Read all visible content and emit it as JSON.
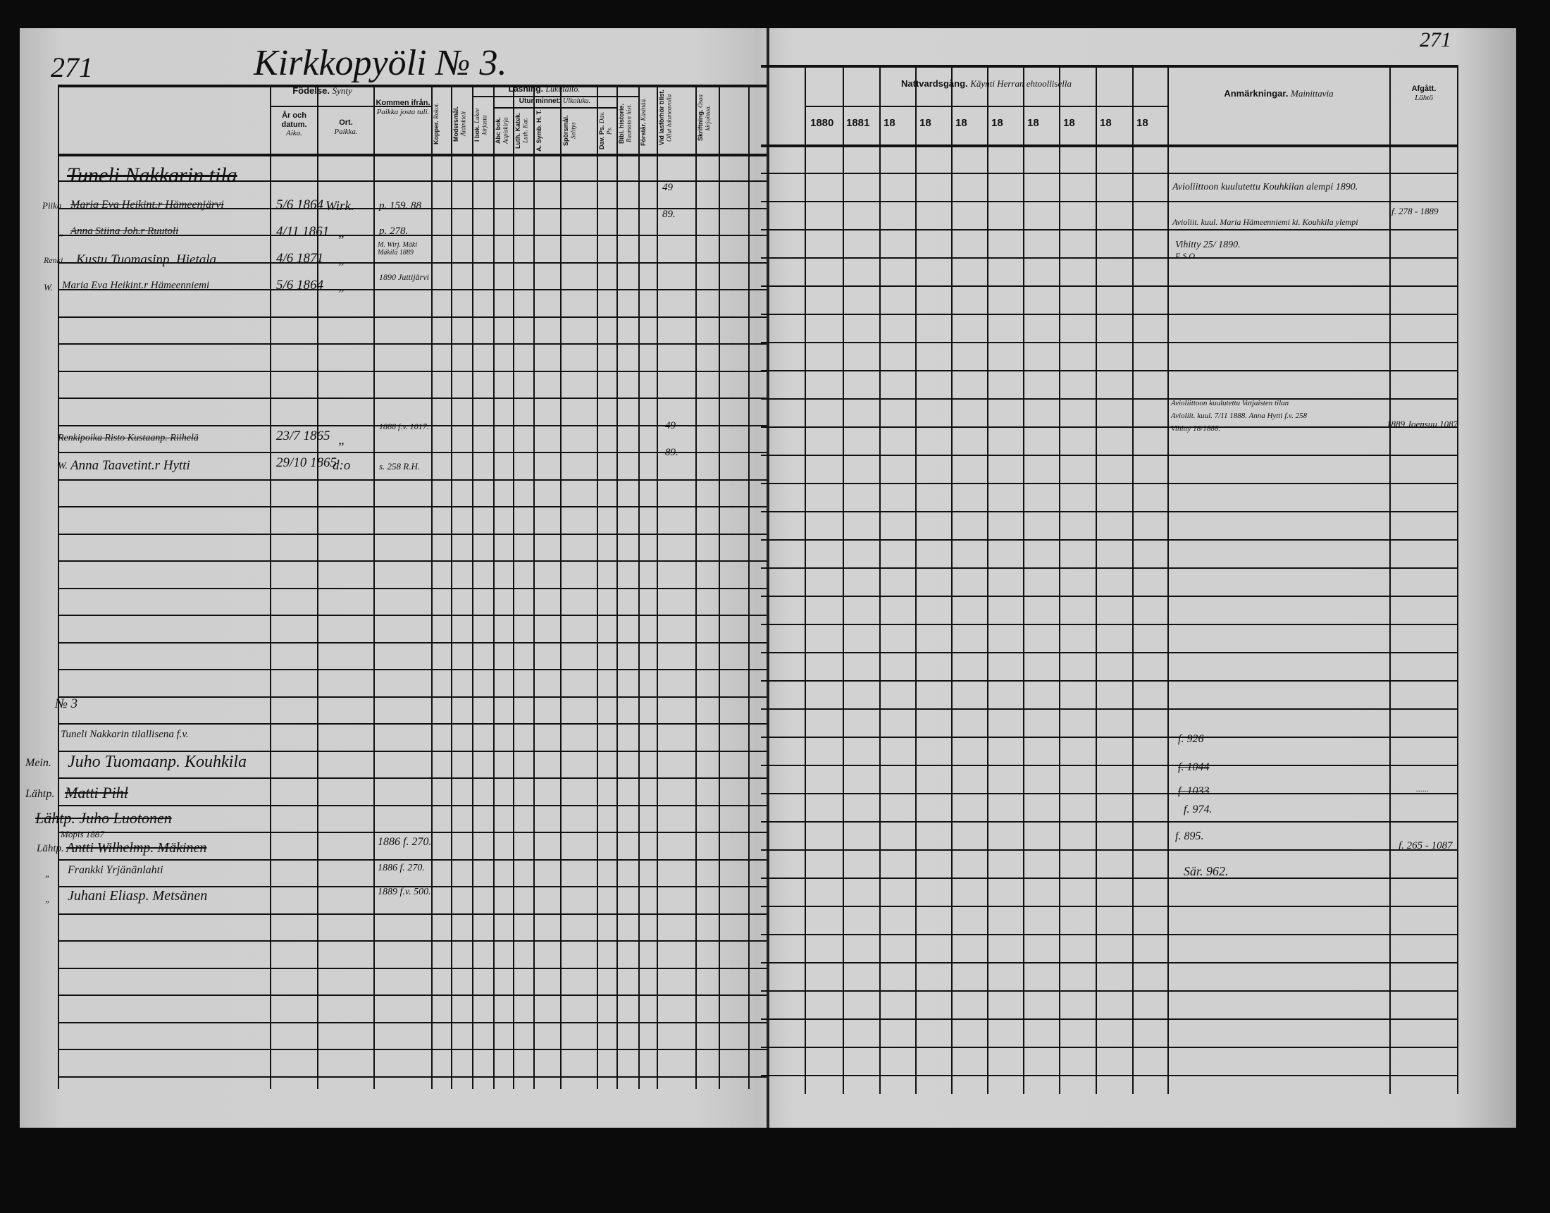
{
  "left_page": {
    "page_number": "271",
    "title": "Kirkkopyöli № 3.",
    "headers": {
      "fodelse": "Födelse.",
      "fodelse_fi": "Synty",
      "ar_datum": "År och datum.",
      "ar_datum_fi": "Aika.",
      "ort": "Ort.",
      "ort_fi": "Paikka.",
      "kommen": "Kommen ifrån.",
      "kommen_fi": "Paikka josta tuli.",
      "kopper": "Kopper.",
      "kopper_fi": "Rokot.",
      "modersmal": "Modersmål.",
      "modersmal_fi": "Äidinkieli",
      "lasning": "Läsning.",
      "lasning_fi": "Lukutaito.",
      "i_bok": "I bok.",
      "i_bok_fi": "Lukee kirjasta",
      "utur_minnet": "Utur minnet:",
      "utur_minnet_fi": "Ulkoluku.",
      "abc": "Abc bok.",
      "abc_fi": "Aapiskirja",
      "luth": "Luth. Katek.",
      "luth_fi": "Luth. Kat.",
      "asymb": "A. Symb. H. T.",
      "sporsmal": "Spörsmål.",
      "sporsmal_fi": "Selitys",
      "dav": "Dav. Ps.",
      "dav_fi": "Dav. Ps.",
      "bibl": "Bibl. historie.",
      "bibl_fi": "Raamatun hist.",
      "forstar": "Förstår.",
      "forstar_fi": "Käsittää.",
      "vid_lasforhor": "Vid lasförhör tillst.",
      "vid_lasforhor_fi": "Ollut lukuneuvolla",
      "skriftning": "Skriftning.",
      "skriftning_fi": "Osaa kirjoittaa."
    },
    "entries": {
      "e1_name": "Tuneli Nakkarin tila",
      "e2_prefix": "Piika",
      "e2_name": "Maria Eva Heikint.r Hämeenjärvi",
      "e2_date": "5/6 1864",
      "e2_place": "Wirk.",
      "e2_from": "p. 159. 88",
      "e2_vid": "49",
      "e3_prefix": "„",
      "e3_name": "Anna Stiina Joh.r Ruutoli",
      "e3_date": "4/11 1861",
      "e3_place": "„",
      "e3_from": "p. 278.",
      "e3_vid": "89.",
      "e4_prefix": "Renki",
      "e4_name": "Kustu Tuomasinp. Hietala",
      "e4_date": "4/6 1871",
      "e4_place": "„",
      "e4_from": "M. Wirj. Mäki Mäkilä 1889",
      "e5_prefix": "W.",
      "e5_name": "Maria Eva Heikint.r Hämeenniemi",
      "e5_date": "5/6 1864",
      "e5_place": "„",
      "e5_from": "1890 Juttijärvi",
      "e6_name": "Renkipoika Risto Kustaanp. Riihelä",
      "e6_date": "23/7 1865",
      "e6_place": "„",
      "e6_from": "1888 f.v. 1017.",
      "e6_vid": "49",
      "e7_prefix": "W.",
      "e7_name": "Anna Taavetint.r Hytti",
      "e7_date": "29/10 1865",
      "e7_place": "d:o",
      "e7_from": "s. 258 R.H.",
      "e7_vid": "89.",
      "n3": "№ 3",
      "e8_name": "Tuneli Nakkarin tilallisena f.v.",
      "e9_prefix": "Mein.",
      "e9_name": "Juho Tuomaanp. Kouhkila",
      "e10_prefix": "Lähtp.",
      "e10_name": "Matti Pihl",
      "e11_name": "Lähtp. Juho Luotonen",
      "e12_note": "Mopis 1887",
      "e12_prefix": "Lähtp.",
      "e12_name": "Antti Wilhelmp. Mäkinen",
      "e12_from": "1886 f. 270.",
      "e13_prefix": "„",
      "e13_name": "Frankki Yrjänänlahti",
      "e13_from": "1886 f. 270.",
      "e14_prefix": "„",
      "e14_name": "Juhani Eliasp. Metsänen",
      "e14_from": "1889 f.v. 500."
    }
  },
  "right_page": {
    "page_number": "271",
    "headers": {
      "nattvardsgang": "Nattvardsgång.",
      "nattvardsgang_fi": "Käynti Herran ehtoollisella",
      "years": [
        "1880",
        "1881",
        "18",
        "18",
        "18",
        "18",
        "18",
        "18",
        "18",
        "18"
      ],
      "anmarkningar": "Anmärkningar.",
      "anmarkningar_fi": "Mainittavia",
      "afgatt": "Afgått.",
      "afgatt_fi": "Lähtö"
    },
    "remarks": {
      "r1": "Avioliittoon kuulutettu Kouhkilan alempi 1890.",
      "r2": "Avioliit. kuul. Maria Hämeenniemi ki. Kouhkila ylempi",
      "r2_afgatt": "f. 278 - 1889",
      "r3": "Vihitty 25/ 1890.",
      "r3b": "E.S.O.",
      "r4": "Avioliittoon kuulutettu Vatjaisten tilan",
      "r5": "Avioliit. kuul. 7/11 1888. Anna Hytti f.v. 258",
      "r6": "Vihitty 18/1888.",
      "r6_afgatt": "1889 Joensuu 1087",
      "r7": "f. 926",
      "r8": "f. 1044",
      "r9": "f. 1033",
      "r9_afgatt": "......",
      "r10": "f. 974.",
      "r11": "f. 895.",
      "r11_afgatt": "f. 265 - 1087",
      "r12": "Sär. 962."
    }
  }
}
